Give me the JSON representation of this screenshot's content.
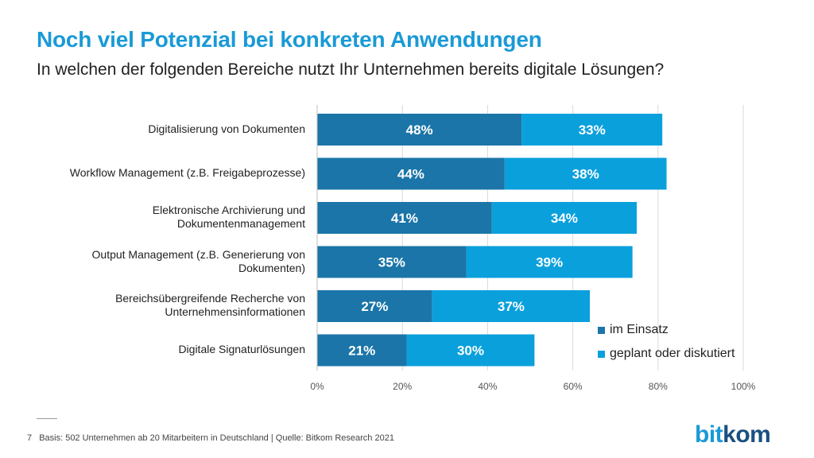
{
  "header": {
    "title": "Noch viel Potenzial bei konkreten Anwendungen",
    "subtitle": "In welchen der folgenden Bereiche nutzt Ihr Unternehmen bereits digitale Lösungen?"
  },
  "chart_data": {
    "type": "bar",
    "orientation": "horizontal",
    "stacked": true,
    "categories": [
      "Digitalisierung von Dokumenten",
      "Workflow Management (z.B. Freigabeprozesse)",
      "Elektronische Archivierung und Dokumentenmanagement",
      "Output Management (z.B. Generierung von Dokumenten)",
      "Bereichsübergreifende Recherche von Unternehmensinformationen",
      "Digitale Signaturlösungen"
    ],
    "category_lines": [
      [
        "Digitalisierung von Dokumenten"
      ],
      [
        "Workflow Management (z.B. Freigabeprozesse)"
      ],
      [
        "Elektronische Archivierung und",
        "Dokumentenmanagement"
      ],
      [
        "Output Management (z.B. Generierung von",
        "Dokumenten)"
      ],
      [
        "Bereichsübergreifende Recherche von",
        "Unternehmensinformationen"
      ],
      [
        "Digitale Signaturlösungen"
      ]
    ],
    "series": [
      {
        "name": "im Einsatz",
        "color": "#1b75a8",
        "values": [
          48,
          44,
          41,
          35,
          27,
          21
        ]
      },
      {
        "name": "geplant oder diskutiert",
        "color": "#0aa0dc",
        "values": [
          33,
          38,
          34,
          39,
          37,
          30
        ]
      }
    ],
    "xlim": [
      0,
      100
    ],
    "xticks": [
      0,
      20,
      40,
      60,
      80,
      100
    ],
    "xtick_labels": [
      "0%",
      "20%",
      "40%",
      "60%",
      "80%",
      "100%"
    ],
    "grid": true,
    "legend_position": "bottom-right"
  },
  "footer": {
    "page_number": "7",
    "source": "Basis: 502 Unternehmen ab 20 Mitarbeitern in Deutschland | Quelle: Bitkom Research 2021"
  },
  "logo": {
    "part1": "bit",
    "part2": "kom"
  }
}
